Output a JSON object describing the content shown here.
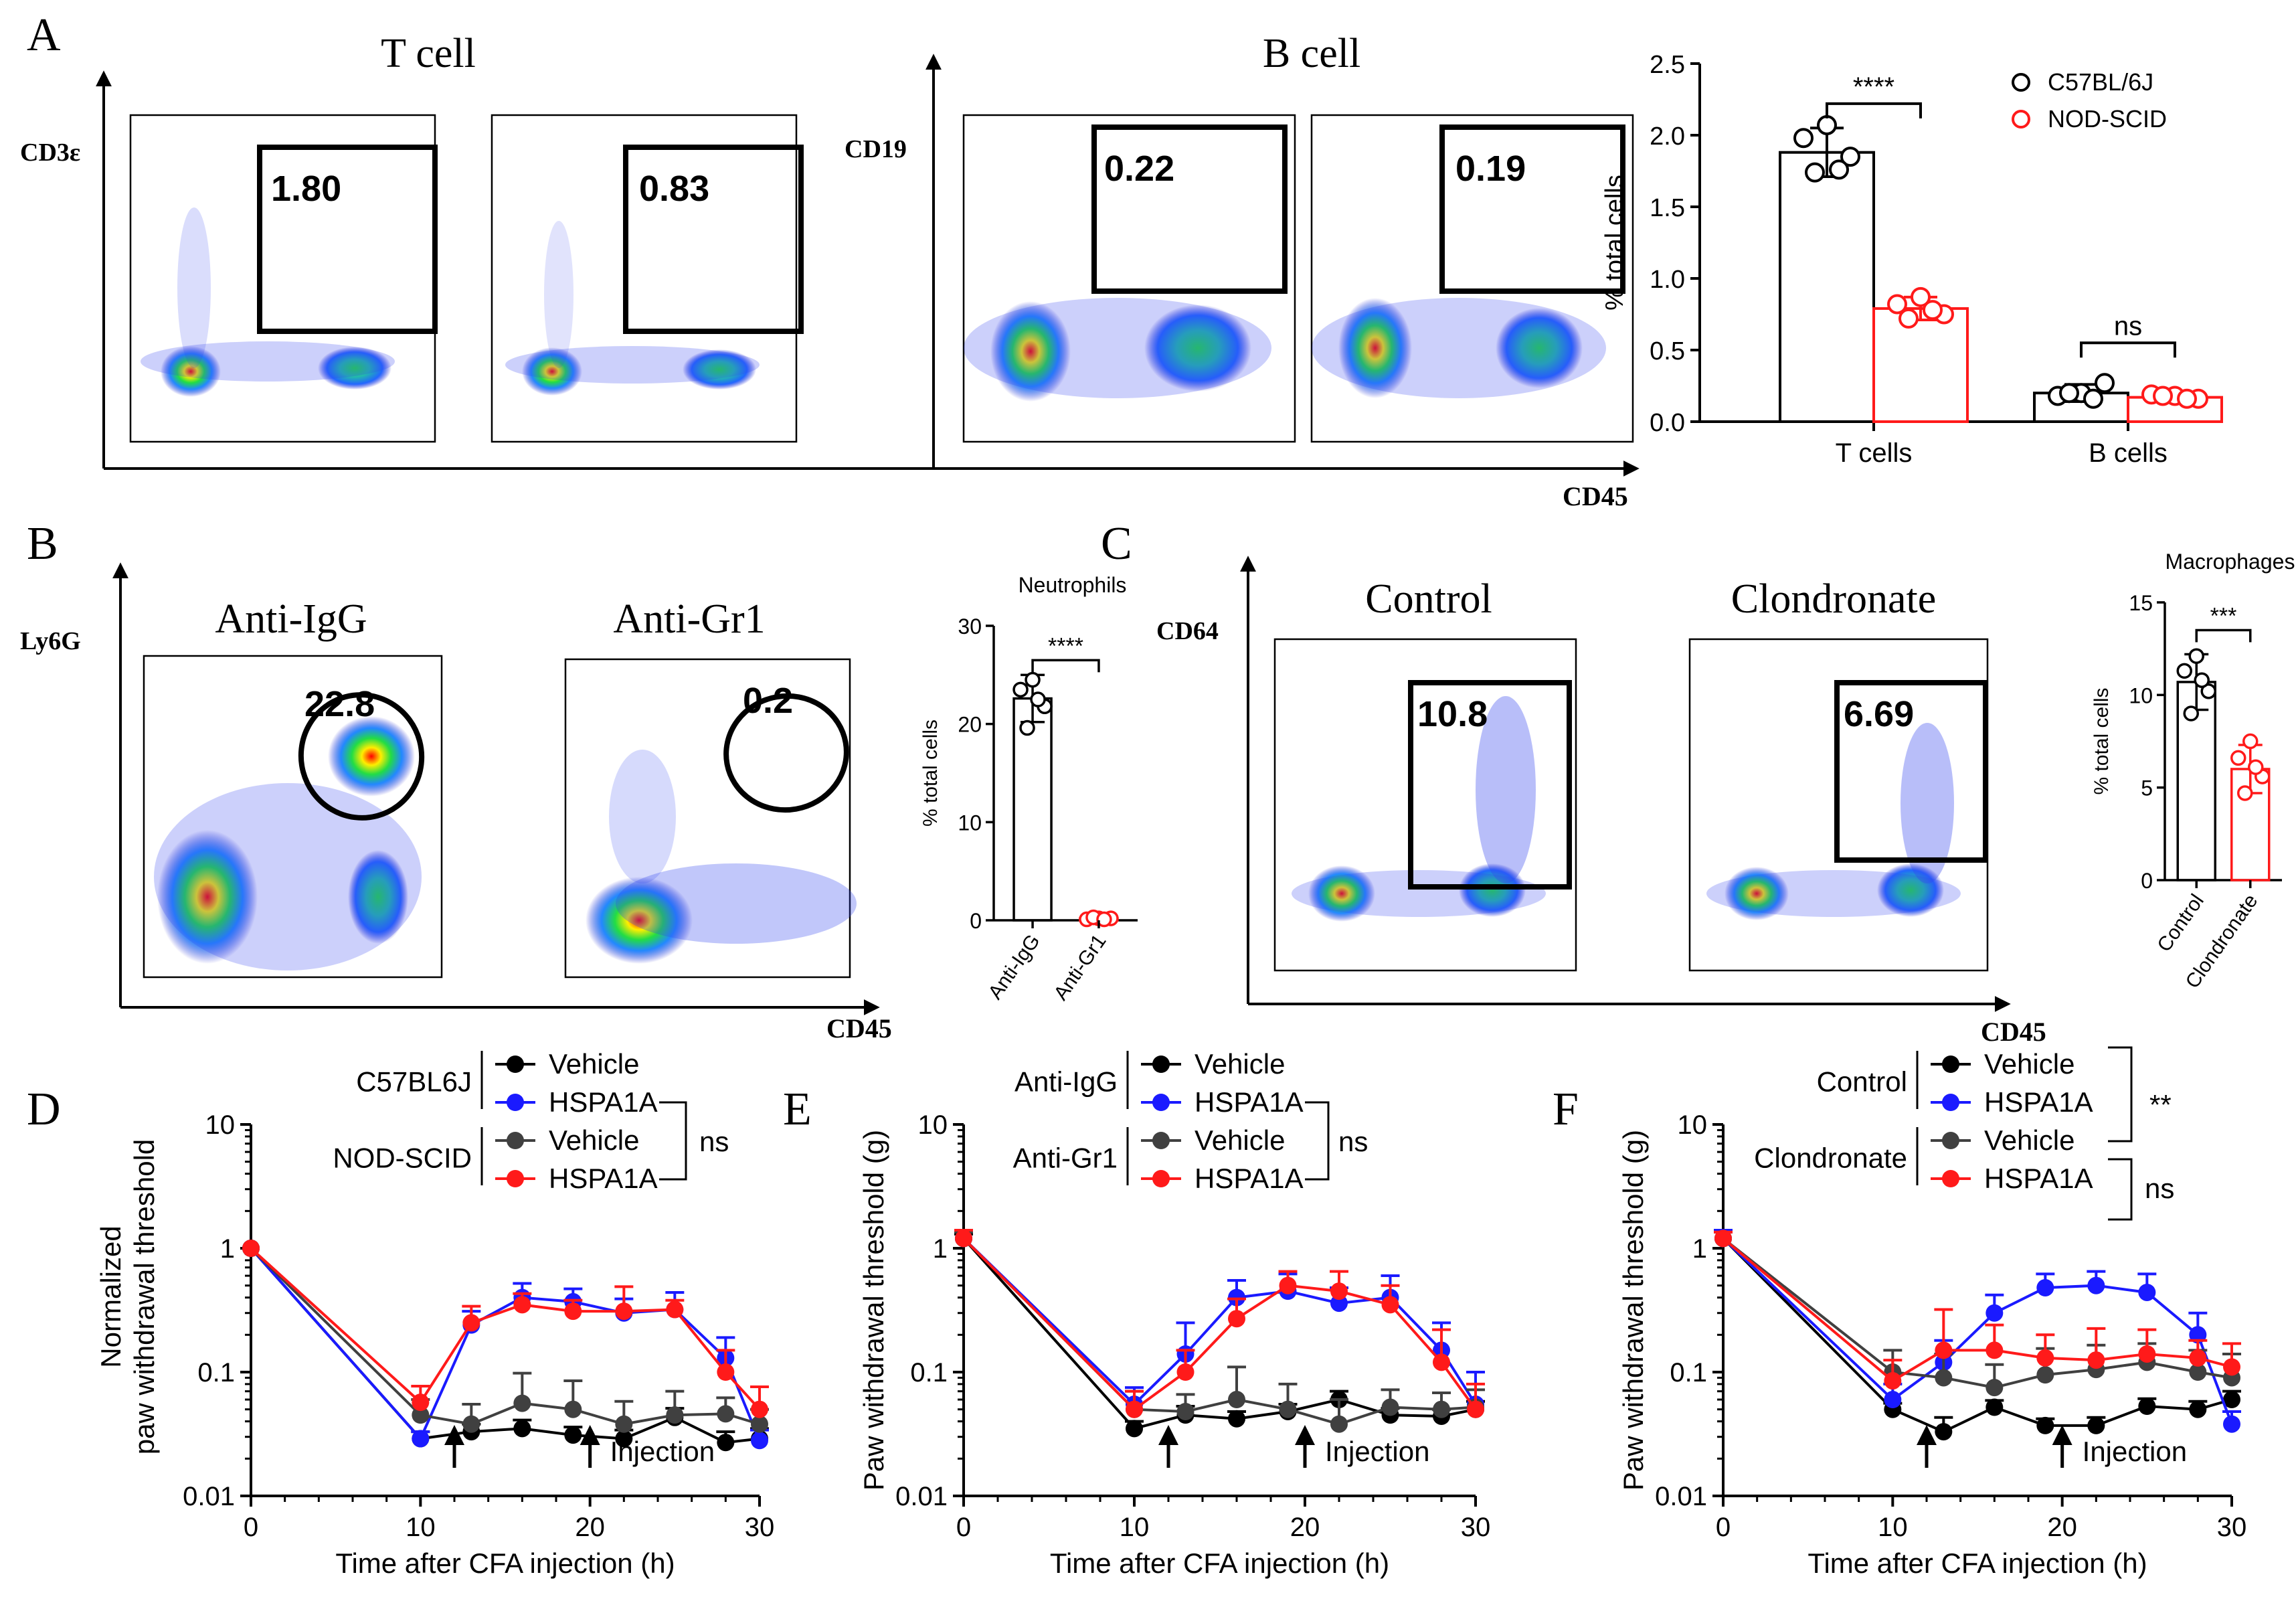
{
  "panel_letters": {
    "a": "A",
    "b": "B",
    "c": "C",
    "d": "D",
    "e": "E",
    "f": "F"
  },
  "colors": {
    "black": "#000000",
    "red": "#ff1a1a",
    "blue": "#1a1aff",
    "gray": "#404040"
  },
  "flow": {
    "A": {
      "t_title": "T cell",
      "b_title": "B cell",
      "t_ylabel": "CD3ε",
      "b_ylabel": "CD19",
      "xlabel": "CD45",
      "plots": [
        {
          "gate": "1.80"
        },
        {
          "gate": "0.83"
        },
        {
          "gate": "0.22"
        },
        {
          "gate": "0.19"
        }
      ]
    },
    "B": {
      "ylabel": "Ly6G",
      "xlabel": "CD45",
      "plots": [
        {
          "title": "Anti-IgG",
          "gate": "22.8"
        },
        {
          "title": "Anti-Gr1",
          "gate": "0.2"
        }
      ]
    },
    "C": {
      "ylabel": "CD64",
      "xlabel": "CD45",
      "plots": [
        {
          "title": "Control",
          "gate": "10.8"
        },
        {
          "title": "Clondronate",
          "gate": "6.69"
        }
      ]
    }
  },
  "chart_data": [
    {
      "id": "A-bar",
      "type": "bar",
      "ylabel": "% total cells",
      "ylim": [
        0,
        2.5
      ],
      "yticks": [
        "0.0",
        "0.5",
        "1.0",
        "1.5",
        "2.0",
        "2.5"
      ],
      "categories": [
        "T cells",
        "B cells"
      ],
      "series": [
        {
          "name": "C57BL/6J",
          "color": "#000000",
          "values": [
            1.88,
            0.2
          ],
          "sd": [
            0.17,
            0.06
          ],
          "points": [
            [
              2.07,
              1.98,
              1.85,
              1.74,
              1.76
            ],
            [
              0.2,
              0.18,
              0.27,
              0.2,
              0.16
            ]
          ]
        },
        {
          "name": "NOD-SCID",
          "color": "#ff1a1a",
          "values": [
            0.79,
            0.17
          ],
          "sd": [
            0.08,
            0.02
          ],
          "points": [
            [
              0.87,
              0.82,
              0.75,
              0.72,
              0.78
            ],
            [
              0.18,
              0.19,
              0.16,
              0.18,
              0.16
            ]
          ]
        }
      ],
      "significance": [
        "****",
        "ns"
      ],
      "legend": [
        "C57BL/6J",
        "NOD-SCID"
      ]
    },
    {
      "id": "B-bar",
      "type": "bar",
      "title": "Neutrophils",
      "ylabel": "% total cells",
      "ylim": [
        0,
        30
      ],
      "yticks": [
        "0",
        "10",
        "20",
        "30"
      ],
      "categories": [
        "Anti-IgG",
        "Anti-Gr1"
      ],
      "values": [
        22.6,
        0.2
      ],
      "sd": [
        2.4,
        0.2
      ],
      "colors": [
        "#000000",
        "#ff1a1a"
      ],
      "points": [
        [
          24.5,
          23.5,
          21.8,
          19.6,
          22.5
        ],
        [
          0.2,
          0.1,
          0.2,
          0.3,
          0.1
        ]
      ],
      "significance": "****"
    },
    {
      "id": "C-bar",
      "type": "bar",
      "title": "Macrophages",
      "ylabel": "% total cells",
      "ylim": [
        0,
        15
      ],
      "yticks": [
        "0",
        "5",
        "10",
        "15"
      ],
      "categories": [
        "Control",
        "Clondronate"
      ],
      "values": [
        10.7,
        6.0
      ],
      "sd": [
        1.5,
        1.3
      ],
      "colors": [
        "#000000",
        "#ff1a1a"
      ],
      "points": [
        [
          12.1,
          11.3,
          10.2,
          9.0,
          10.8
        ],
        [
          7.5,
          6.6,
          5.6,
          4.7,
          6.1
        ]
      ],
      "significance": "***"
    },
    {
      "id": "D-line",
      "type": "line",
      "ylabel_lines": [
        "Normalized",
        "paw withdrawal threshold"
      ],
      "xlabel": "Time after CFA injection (h)",
      "ylim": [
        0.01,
        10
      ],
      "yticks": [
        "0.01",
        "0.1",
        "1",
        "10"
      ],
      "xlim": [
        0,
        30
      ],
      "xticks": [
        "0",
        "10",
        "20",
        "30"
      ],
      "x": [
        0,
        10,
        13,
        16,
        19,
        22,
        25,
        28,
        30
      ],
      "series": [
        {
          "name": "C57BL6J Vehicle",
          "color": "#000000",
          "values": [
            1,
            0.029,
            0.033,
            0.035,
            0.031,
            0.029,
            0.043,
            0.027,
            0.029
          ],
          "err": [
            0,
            0.004,
            0.005,
            0.006,
            0.005,
            0.005,
            0.008,
            0.006,
            0.006
          ]
        },
        {
          "name": "C57BL6J HSPA1A",
          "color": "#1a1aff",
          "values": [
            1,
            0.029,
            0.24,
            0.4,
            0.37,
            0.3,
            0.32,
            0.13,
            0.028
          ],
          "err": [
            0,
            0.004,
            0.07,
            0.12,
            0.1,
            0.09,
            0.12,
            0.06,
            0.006
          ]
        },
        {
          "name": "NOD-SCID Vehicle",
          "color": "#404040",
          "values": [
            1,
            0.045,
            0.038,
            0.056,
            0.05,
            0.038,
            0.045,
            0.046,
            0.038
          ],
          "err": [
            0,
            0.015,
            0.017,
            0.042,
            0.035,
            0.02,
            0.025,
            0.016,
            0.012
          ]
        },
        {
          "name": "NOD-SCID HSPA1A",
          "color": "#ff1a1a",
          "values": [
            1,
            0.057,
            0.25,
            0.35,
            0.31,
            0.31,
            0.32,
            0.1,
            0.05
          ],
          "err": [
            0,
            0.02,
            0.09,
            0.08,
            0.07,
            0.18,
            0.06,
            0.05,
            0.026
          ]
        }
      ],
      "legend_groups": [
        {
          "group": "C57BL6J",
          "items": [
            "Vehicle",
            "HSPA1A"
          ]
        },
        {
          "group": "NOD-SCID",
          "items": [
            "Vehicle",
            "HSPA1A"
          ]
        }
      ],
      "significance": [
        "ns"
      ],
      "injection_label": "Injection",
      "arrows_x": [
        12,
        20
      ]
    },
    {
      "id": "E-line",
      "type": "line",
      "ylabel": "Paw withdrawal threshold (g)",
      "xlabel": "Time after CFA injection (h)",
      "ylim": [
        0.01,
        10
      ],
      "yticks": [
        "0.01",
        "0.1",
        "1",
        "10"
      ],
      "xlim": [
        0,
        30
      ],
      "xticks": [
        "0",
        "10",
        "20",
        "30"
      ],
      "x": [
        0,
        10,
        13,
        16,
        19,
        22,
        25,
        28,
        30
      ],
      "series": [
        {
          "name": "Anti-IgG Vehicle",
          "color": "#000000",
          "values": [
            1.2,
            0.035,
            0.045,
            0.042,
            0.048,
            0.06,
            0.045,
            0.044,
            0.05
          ],
          "err": [
            0.1,
            0.005,
            0.008,
            0.006,
            0.007,
            0.01,
            0.006,
            0.006,
            0.008
          ]
        },
        {
          "name": "Anti-IgG HSPA1A",
          "color": "#1a1aff",
          "values": [
            1.2,
            0.055,
            0.14,
            0.4,
            0.45,
            0.36,
            0.4,
            0.15,
            0.055
          ],
          "err": [
            0.2,
            0.02,
            0.11,
            0.15,
            0.17,
            0.12,
            0.2,
            0.1,
            0.045
          ]
        },
        {
          "name": "Anti-Gr1 Vehicle",
          "color": "#404040",
          "values": [
            1.2,
            0.05,
            0.048,
            0.06,
            0.05,
            0.038,
            0.052,
            0.05,
            0.052
          ],
          "err": [
            0.15,
            0.02,
            0.018,
            0.05,
            0.03,
            0.022,
            0.02,
            0.018,
            0.02
          ]
        },
        {
          "name": "Anti-Gr1 HSPA1A",
          "color": "#ff1a1a",
          "values": [
            1.2,
            0.05,
            0.1,
            0.27,
            0.5,
            0.45,
            0.35,
            0.12,
            0.05
          ],
          "err": [
            0.2,
            0.02,
            0.05,
            0.12,
            0.15,
            0.2,
            0.15,
            0.1,
            0.03
          ]
        }
      ],
      "legend_groups": [
        {
          "group": "Anti-IgG",
          "items": [
            "Vehicle",
            "HSPA1A"
          ]
        },
        {
          "group": "Anti-Gr1",
          "items": [
            "Vehicle",
            "HSPA1A"
          ]
        }
      ],
      "significance": [
        "ns"
      ],
      "injection_label": "Injection",
      "arrows_x": [
        12,
        20
      ]
    },
    {
      "id": "F-line",
      "type": "line",
      "ylabel": "Paw withdrawal threshold (g)",
      "xlabel": "Time after CFA injection (h)",
      "ylim": [
        0.01,
        10
      ],
      "yticks": [
        "0.01",
        "0.1",
        "1",
        "10"
      ],
      "xlim": [
        0,
        30
      ],
      "xticks": [
        "0",
        "10",
        "20",
        "30"
      ],
      "x": [
        0,
        10,
        13,
        16,
        19,
        22,
        25,
        28,
        30
      ],
      "series": [
        {
          "name": "Control Vehicle",
          "color": "#000000",
          "values": [
            1.2,
            0.05,
            0.033,
            0.052,
            0.037,
            0.037,
            0.053,
            0.05,
            0.06
          ],
          "err": [
            0.15,
            0.006,
            0.01,
            0.007,
            0.005,
            0.006,
            0.008,
            0.008,
            0.01
          ]
        },
        {
          "name": "Control HSPA1A",
          "color": "#1a1aff",
          "values": [
            1.2,
            0.06,
            0.12,
            0.3,
            0.48,
            0.5,
            0.44,
            0.2,
            0.038
          ],
          "err": [
            0.2,
            0.02,
            0.06,
            0.12,
            0.14,
            0.15,
            0.18,
            0.1,
            0.01
          ]
        },
        {
          "name": "Clondronate Vehicle",
          "color": "#404040",
          "values": [
            1.2,
            0.1,
            0.09,
            0.075,
            0.095,
            0.105,
            0.12,
            0.1,
            0.09
          ],
          "err": [
            0.15,
            0.05,
            0.05,
            0.04,
            0.06,
            0.06,
            0.05,
            0.05,
            0.05
          ]
        },
        {
          "name": "Clondronate HSPA1A",
          "color": "#ff1a1a",
          "values": [
            1.2,
            0.085,
            0.15,
            0.15,
            0.13,
            0.125,
            0.14,
            0.13,
            0.11
          ],
          "err": [
            0.15,
            0.04,
            0.17,
            0.09,
            0.07,
            0.1,
            0.08,
            0.05,
            0.06
          ]
        }
      ],
      "legend_groups": [
        {
          "group": "Control",
          "items": [
            "Vehicle",
            "HSPA1A"
          ]
        },
        {
          "group": "Clondronate",
          "items": [
            "Vehicle",
            "HSPA1A"
          ]
        }
      ],
      "significance": [
        "**",
        "ns"
      ],
      "injection_label": "Injection",
      "arrows_x": [
        12,
        20
      ]
    }
  ]
}
